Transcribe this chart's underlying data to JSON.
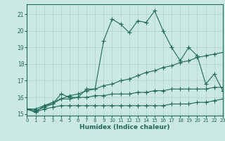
{
  "xlabel": "Humidex (Indice chaleur)",
  "bg_color": "#cce8e2",
  "grid_color": "#b0d4ce",
  "line_color": "#1a6b5a",
  "xlim": [
    0,
    23
  ],
  "ylim": [
    14.9,
    21.6
  ],
  "yticks": [
    15,
    16,
    17,
    18,
    19,
    20,
    21
  ],
  "xticks": [
    0,
    1,
    2,
    3,
    4,
    5,
    6,
    7,
    8,
    9,
    10,
    11,
    12,
    13,
    14,
    15,
    16,
    17,
    18,
    19,
    20,
    21,
    22,
    23
  ],
  "series1": [
    15.3,
    15.1,
    15.5,
    15.6,
    16.2,
    16.0,
    16.0,
    16.5,
    16.5,
    19.4,
    20.7,
    20.4,
    19.9,
    20.6,
    20.5,
    21.2,
    20.0,
    19.0,
    18.2,
    19.0,
    18.5,
    16.8,
    17.4,
    16.4
  ],
  "series2": [
    15.3,
    15.3,
    15.5,
    15.7,
    15.9,
    16.1,
    16.2,
    16.4,
    16.5,
    16.7,
    16.8,
    17.0,
    17.1,
    17.3,
    17.5,
    17.6,
    17.8,
    17.9,
    18.1,
    18.2,
    18.4,
    18.5,
    18.6,
    18.7
  ],
  "series3": [
    15.3,
    15.2,
    15.4,
    15.6,
    15.9,
    15.9,
    16.0,
    16.0,
    16.1,
    16.1,
    16.2,
    16.2,
    16.2,
    16.3,
    16.3,
    16.4,
    16.4,
    16.5,
    16.5,
    16.5,
    16.5,
    16.5,
    16.6,
    16.6
  ],
  "series4": [
    15.3,
    15.1,
    15.3,
    15.4,
    15.5,
    15.5,
    15.5,
    15.5,
    15.5,
    15.5,
    15.5,
    15.5,
    15.5,
    15.5,
    15.5,
    15.5,
    15.5,
    15.6,
    15.6,
    15.6,
    15.7,
    15.7,
    15.8,
    15.9
  ]
}
